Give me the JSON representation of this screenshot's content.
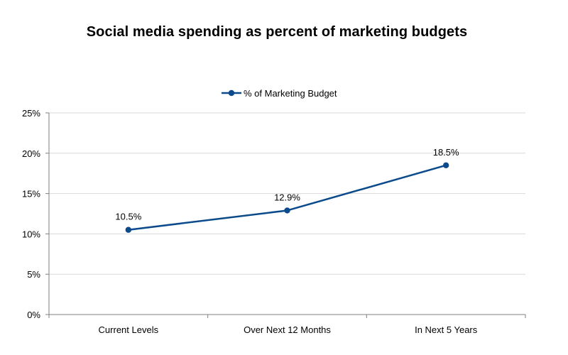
{
  "chart_data": {
    "type": "line",
    "title": "Social media spending as percent of marketing budgets",
    "categories": [
      "Current Levels",
      "Over Next 12 Months",
      "In Next 5 Years"
    ],
    "series": [
      {
        "name": "% of Marketing Budget",
        "values": [
          10.5,
          12.9,
          18.5
        ],
        "labels": [
          "10.5%",
          "12.9%",
          "18.5%"
        ],
        "color": "#0b4a8b"
      }
    ],
    "ylim": [
      0,
      25
    ],
    "yticks": [
      0,
      5,
      10,
      15,
      20,
      25
    ],
    "ytick_labels": [
      "0%",
      "5%",
      "10%",
      "15%",
      "20%",
      "25%"
    ],
    "xlabel": "",
    "ylabel": "",
    "grid": true,
    "legend_position": "top-center",
    "gridline_color": "#d9d9d9",
    "axis_color": "#7f7f7f"
  }
}
